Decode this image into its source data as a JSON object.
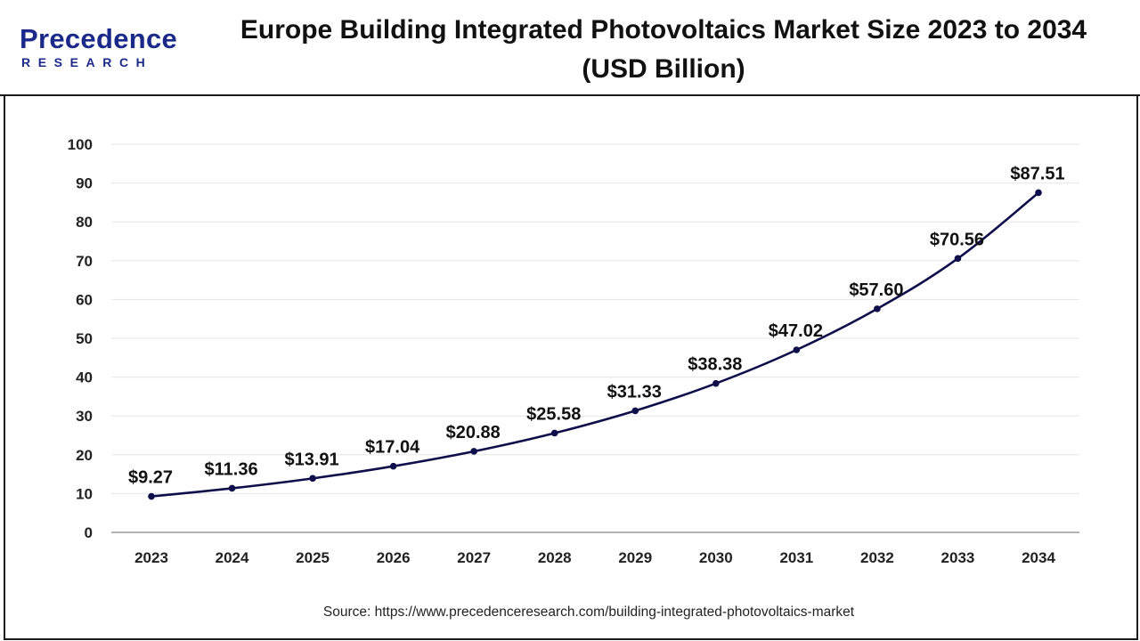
{
  "brand": {
    "name": "Precedence",
    "sub": "RESEARCH",
    "color": "#1b2a8a"
  },
  "header": {
    "title_line1": "Europe Building Integrated Photovoltaics Market Size 2023 to 2034",
    "title_line2": "(USD Billion)"
  },
  "source": "Source: https://www.precedenceresearch.com/building-integrated-photovoltaics-market",
  "chart_data": {
    "type": "line",
    "title": "Europe Building Integrated Photovoltaics Market Size 2023 to 2034 (USD Billion)",
    "xlabel": "",
    "ylabel": "",
    "categories": [
      "2023",
      "2024",
      "2025",
      "2026",
      "2027",
      "2028",
      "2029",
      "2030",
      "2031",
      "2032",
      "2033",
      "2034"
    ],
    "values": [
      9.27,
      11.36,
      13.91,
      17.04,
      20.88,
      25.58,
      31.33,
      38.38,
      47.02,
      57.6,
      70.56,
      87.51
    ],
    "data_labels": [
      "$9.27",
      "$11.36",
      "$13.91",
      "$17.04",
      "$20.88",
      "$25.58",
      "$31.33",
      "$38.38",
      "$47.02",
      "$57.60",
      "$70.56",
      "$87.51"
    ],
    "ylim": [
      0,
      100
    ],
    "yticks": [
      0,
      10,
      20,
      30,
      40,
      50,
      60,
      70,
      80,
      90,
      100
    ],
    "grid": true,
    "legend": "none",
    "line_color": "#0e0e4a"
  }
}
